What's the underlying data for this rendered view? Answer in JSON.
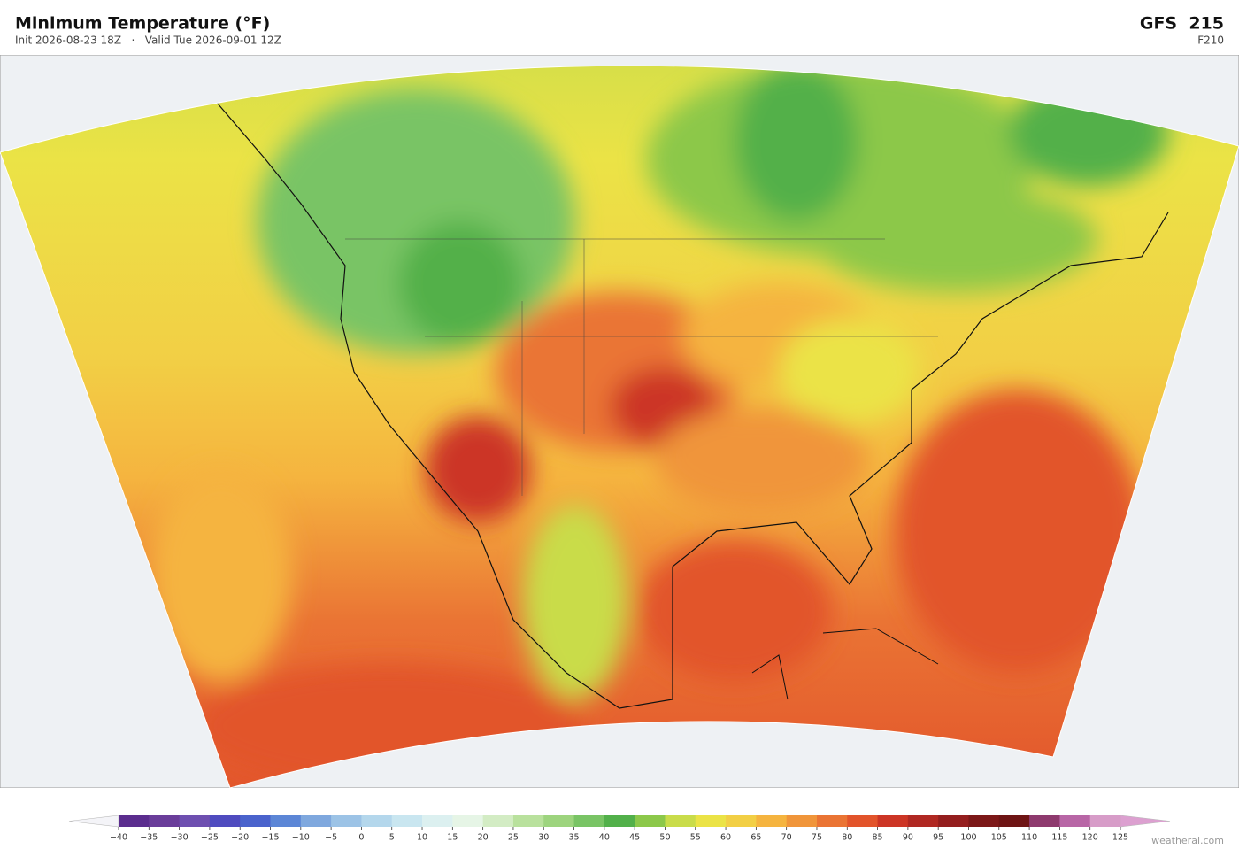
{
  "header": {
    "title": "Minimum Temperature  (°F)",
    "subtitle": "Init 2026-08-23 18Z   ·   Valid Tue 2026-09-01 12Z",
    "model": "GFS  215",
    "forecast_hour": "F210"
  },
  "colorbar": {
    "ticks": [
      {
        "value": -40,
        "label": "−40"
      },
      {
        "value": -35,
        "label": "−35"
      },
      {
        "value": -30,
        "label": "−30"
      },
      {
        "value": -25,
        "label": "−25"
      },
      {
        "value": -20,
        "label": "−20"
      },
      {
        "value": -15,
        "label": "−15"
      },
      {
        "value": -10,
        "label": "−10"
      },
      {
        "value": -5,
        "label": "−5"
      },
      0,
      5,
      10,
      15,
      20,
      25,
      30,
      35,
      40,
      45,
      50,
      55,
      60,
      65,
      70,
      75,
      80,
      85,
      90,
      95,
      100,
      105,
      110,
      115,
      120,
      125
    ],
    "colors": [
      "#5b2d8e",
      "#6a3d9a",
      "#6e4fb0",
      "#4f4bbf",
      "#4a63cc",
      "#5c86d6",
      "#7fa8de",
      "#9cc3e6",
      "#b4d7ec",
      "#c9e6f0",
      "#dcf0f0",
      "#e6f5e6",
      "#d3ecc4",
      "#b9e19d",
      "#9dd47e",
      "#79c465",
      "#52b04a",
      "#8cc84a",
      "#c9dc4a",
      "#ebe346",
      "#f2cf45",
      "#f5b43f",
      "#f0953a",
      "#ea7434",
      "#e2542b",
      "#cc3525",
      "#b02822",
      "#941e1e",
      "#7c1818",
      "#6e1414",
      "#8e3a6e",
      "#b866a6",
      "#d79cc8"
    ],
    "under_color": "#f4f4f8",
    "over_color": "#dca0d0"
  },
  "watermark": "weatherai.com"
}
